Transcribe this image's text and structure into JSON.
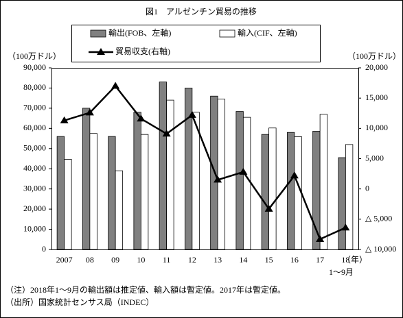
{
  "chart_data": {
    "type": "bar_line",
    "title": "図1　アルゼンチン貿易の推移",
    "y_label": "（100万ドル）",
    "y2_label": "（100万ドル）",
    "x_unit": "（年）",
    "x_sublabel": "1～9月",
    "categories": [
      "2007",
      "08",
      "09",
      "10",
      "11",
      "12",
      "13",
      "14",
      "15",
      "16",
      "17",
      "18"
    ],
    "series": [
      {
        "name": "輸出(FOB、左軸)",
        "type": "bar",
        "color": "#808080",
        "values": [
          56000,
          70000,
          56000,
          68000,
          83000,
          80000,
          76000,
          68400,
          57000,
          58000,
          58600,
          45500
        ]
      },
      {
        "name": "輸入(CIF、左軸)",
        "type": "bar",
        "color": "#ffffff",
        "values": [
          44700,
          57500,
          39000,
          57000,
          74000,
          68000,
          74500,
          65500,
          60200,
          55900,
          67000,
          52000
        ]
      },
      {
        "name": "貿易収支(右軸)",
        "type": "line",
        "axis": "y2",
        "color": "#000000",
        "values": [
          11300,
          12600,
          17000,
          11600,
          9100,
          12200,
          1500,
          2800,
          -3300,
          2200,
          -8300,
          -6400
        ]
      }
    ],
    "ylim": [
      0,
      90000
    ],
    "yticks": [
      0,
      {
        "value": 10000,
        "label": "10,000"
      },
      {
        "value": 20000,
        "label": "20,000"
      },
      {
        "value": 30000,
        "label": "30,000"
      },
      {
        "value": 40000,
        "label": "40,000"
      },
      {
        "value": 50000,
        "label": "50,000"
      },
      {
        "value": 60000,
        "label": "60,000"
      },
      {
        "value": 70000,
        "label": "70,000"
      },
      {
        "value": 80000,
        "label": "80,000"
      },
      {
        "value": 90000,
        "label": "90,000"
      }
    ],
    "y2lim": [
      -10000,
      20000
    ],
    "y2ticks": [
      {
        "value": -10000,
        "label": "△ 10,000"
      },
      {
        "value": -5000,
        "label": "△ 5,000"
      },
      0,
      {
        "value": 5000,
        "label": "5,000"
      },
      {
        "value": 10000,
        "label": "10,000"
      },
      {
        "value": 15000,
        "label": "15,000"
      },
      {
        "value": 20000,
        "label": "20,000"
      }
    ],
    "notes": [
      "（注）2018年1～9月の輸出額は推定値、輸入額は暫定値。2017年は暫定値。",
      "（出所）国家統計センサス局（INDEC）"
    ]
  }
}
